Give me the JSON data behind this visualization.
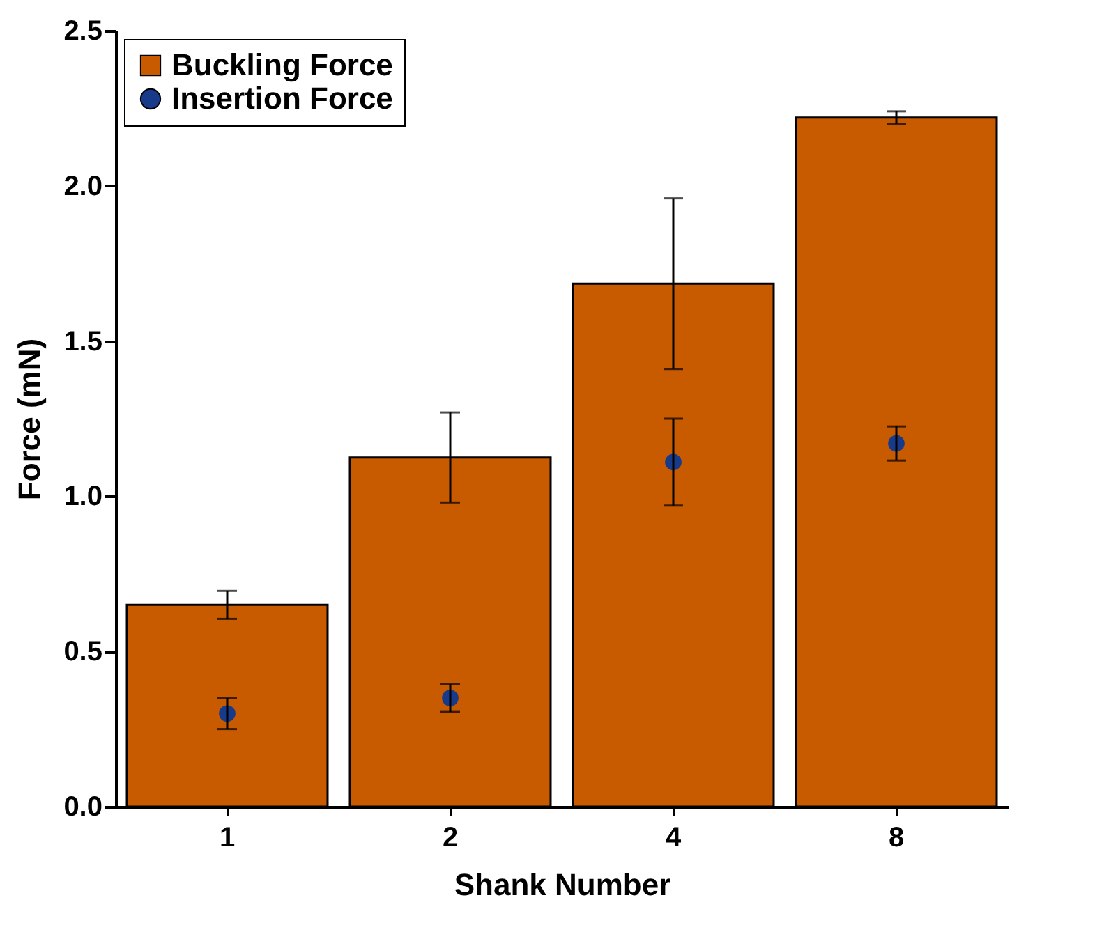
{
  "chart_data": {
    "type": "bar",
    "xlabel": "Shank Number",
    "ylabel": "Force (mN)",
    "categories": [
      "1",
      "2",
      "4",
      "8"
    ],
    "ylim": [
      0,
      2.5
    ],
    "yticks": [
      {
        "value": 0,
        "label": "0.0"
      },
      {
        "value": 0.5,
        "label": "0.5"
      },
      {
        "value": 1,
        "label": "1.0"
      },
      {
        "value": 1.5,
        "label": "1.5"
      },
      {
        "value": 2,
        "label": "2.0"
      },
      {
        "value": 2.5,
        "label": "2.5"
      }
    ],
    "grid": false,
    "legend": "top left",
    "marker": "circle",
    "series": [
      {
        "name": "Buckling Force",
        "color": "#c85a00",
        "values": [
          0.65,
          1.125,
          1.685,
          2.22
        ],
        "errors": [
          0.045,
          0.145,
          0.275,
          0.02
        ]
      },
      {
        "name": "Insertion Force",
        "type": "scatter",
        "color": "#173a8a",
        "values": [
          0.3,
          0.35,
          1.11,
          1.17
        ],
        "errors": [
          0.05,
          0.045,
          0.14,
          0.055
        ]
      }
    ]
  }
}
